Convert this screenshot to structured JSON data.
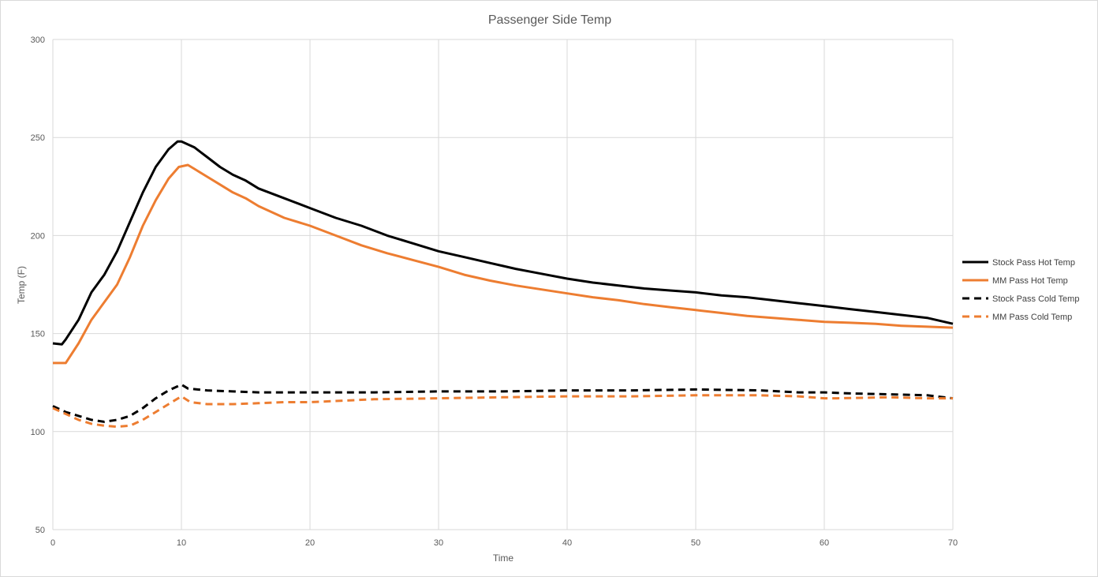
{
  "chart_data": {
    "type": "line",
    "title": "Passenger Side Temp",
    "xlabel": "Time",
    "ylabel": "Temp  (F)",
    "xlim": [
      0,
      70
    ],
    "ylim": [
      50,
      300
    ],
    "x_ticks": [
      0,
      10,
      20,
      30,
      40,
      50,
      60,
      70
    ],
    "y_ticks": [
      50,
      100,
      150,
      200,
      250,
      300
    ],
    "grid": true,
    "legend_position": "right",
    "series": [
      {
        "name": "Stock Pass Hot Temp",
        "color": "#000000",
        "dash": "solid",
        "x": [
          0,
          0.7,
          1,
          2,
          3,
          4,
          5,
          6,
          7,
          8,
          9,
          9.7,
          10,
          11,
          12,
          13,
          14,
          15,
          16,
          18,
          20,
          22,
          24,
          26,
          28,
          30,
          32,
          34,
          36,
          38,
          40,
          42,
          44,
          46,
          48,
          50,
          52,
          54,
          56,
          58,
          60,
          62,
          64,
          66,
          68,
          70
        ],
        "y": [
          145,
          144.5,
          147,
          157,
          171,
          180,
          192,
          207,
          222,
          235,
          244,
          248,
          248,
          245,
          240,
          235,
          231,
          228,
          224,
          219,
          214,
          209,
          205,
          200,
          196,
          192,
          189,
          186,
          183,
          180.5,
          178,
          176,
          174.5,
          173,
          172,
          171,
          169.5,
          168.5,
          167,
          165.5,
          164,
          162.5,
          161,
          159.5,
          158,
          155
        ]
      },
      {
        "name": "MM Pass Hot Temp",
        "color": "#ed7d31",
        "dash": "solid",
        "x": [
          0,
          1,
          2,
          3,
          4,
          5,
          6,
          7,
          8,
          9,
          9.8,
          10.5,
          11,
          12,
          13,
          14,
          15,
          16,
          18,
          20,
          22,
          24,
          26,
          28,
          30,
          32,
          34,
          36,
          38,
          40,
          42,
          44,
          46,
          48,
          50,
          52,
          54,
          56,
          58,
          60,
          62,
          64,
          66,
          68,
          70
        ],
        "y": [
          135,
          135,
          145,
          157,
          166,
          175,
          189,
          205,
          218,
          229,
          235,
          236,
          234,
          230,
          226,
          222,
          219,
          215,
          209,
          205,
          200,
          195,
          191,
          187.5,
          184,
          180,
          177,
          174.5,
          172.5,
          170.5,
          168.5,
          167,
          165,
          163.5,
          162,
          160.5,
          159,
          158,
          157,
          156,
          155.5,
          155,
          154,
          153.5,
          153
        ]
      },
      {
        "name": "Stock Pass Cold Temp",
        "color": "#000000",
        "dash": "dashed",
        "x": [
          0,
          1,
          2,
          3,
          4,
          5,
          6,
          7,
          8,
          9,
          10,
          10.5,
          12,
          14,
          16,
          18,
          20,
          25,
          30,
          35,
          40,
          45,
          50,
          55,
          58,
          60,
          62,
          65,
          68,
          70
        ],
        "y": [
          113,
          110,
          108,
          106,
          105,
          106,
          108,
          112,
          117,
          121,
          124,
          122,
          121,
          120.5,
          120,
          120,
          120,
          120,
          120.5,
          120.5,
          121,
          121,
          121.5,
          121,
          120,
          120,
          119.5,
          119,
          118.5,
          117
        ]
      },
      {
        "name": "MM Pass Cold Temp",
        "color": "#ed7d31",
        "dash": "dashed",
        "x": [
          0,
          1,
          2,
          3,
          4,
          5,
          6,
          7,
          8,
          9,
          10,
          10.7,
          12,
          14,
          16,
          18,
          20,
          25,
          30,
          35,
          40,
          45,
          50,
          55,
          58,
          60,
          61,
          65,
          68,
          70
        ],
        "y": [
          112,
          109,
          106,
          104,
          103,
          102.5,
          103,
          106,
          110,
          114,
          118,
          115,
          114,
          114,
          114.5,
          115,
          115,
          116.5,
          117,
          117.5,
          118,
          118,
          118.5,
          118.5,
          118,
          117,
          117,
          117.5,
          117,
          117
        ]
      }
    ]
  }
}
